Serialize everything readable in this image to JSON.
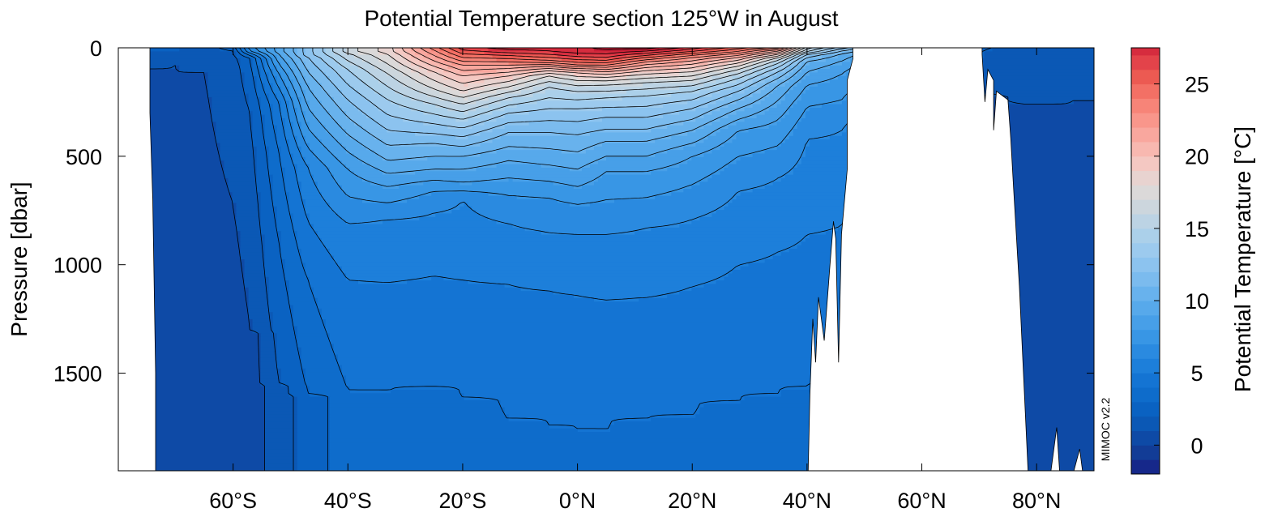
{
  "chart_data": {
    "type": "heatmap",
    "title": "Potential Temperature section 125°W in August",
    "xlabel": "",
    "ylabel": "Pressure [dbar]",
    "colorbar_label": "Potential Temperature [°C]",
    "watermark": "MIMOC v2.2",
    "x_range": [
      -80,
      90
    ],
    "y_range": [
      0,
      1950
    ],
    "y_reversed": true,
    "x_ticks": [
      {
        "value": -60,
        "label": "60°S"
      },
      {
        "value": -40,
        "label": "40°S"
      },
      {
        "value": -20,
        "label": "20°S"
      },
      {
        "value": 0,
        "label": "0°N"
      },
      {
        "value": 20,
        "label": "20°N"
      },
      {
        "value": 40,
        "label": "40°N"
      },
      {
        "value": 60,
        "label": "60°N"
      },
      {
        "value": 80,
        "label": "80°N"
      }
    ],
    "y_ticks": [
      {
        "value": 0,
        "label": "0"
      },
      {
        "value": 500,
        "label": "500"
      },
      {
        "value": 1000,
        "label": "1000"
      },
      {
        "value": 1500,
        "label": "1500"
      }
    ],
    "colorbar_range": [
      -2,
      27.5
    ],
    "colorbar_ticks": [
      {
        "value": 0,
        "label": "0"
      },
      {
        "value": 5,
        "label": "5"
      },
      {
        "value": 10,
        "label": "10"
      },
      {
        "value": 15,
        "label": "15"
      },
      {
        "value": 20,
        "label": "20"
      },
      {
        "value": 25,
        "label": "25"
      }
    ],
    "levels": [
      -2,
      -1,
      0,
      1,
      2,
      3,
      4,
      5,
      6,
      7,
      8,
      9,
      10,
      11,
      12,
      13,
      14,
      15,
      16,
      17,
      18,
      19,
      20,
      21,
      22,
      23,
      24,
      25,
      26,
      27
    ],
    "colors": [
      "#16288a",
      "#123c96",
      "#0e4aa6",
      "#0b58b5",
      "#0a62c2",
      "#0e6ccb",
      "#1474d3",
      "#1d7fda",
      "#2a8ae0",
      "#3896e5",
      "#479fe8",
      "#57a9eb",
      "#68b2ed",
      "#7bbbee",
      "#8cc3ef",
      "#9ccaee",
      "#abd0ea",
      "#bcd3e4",
      "#ccd6dd",
      "#dbd9d9",
      "#e8d3d0",
      "#f4c8c2",
      "#f8b8b0",
      "#f9a79e",
      "#f9968b",
      "#f78478",
      "#f37065",
      "#ec5a52",
      "#e3434a",
      "#d62c3e",
      "#c81d36"
    ],
    "sections": [
      {
        "x": -73.5,
        "isotherms": [
          [
            0.5,
            12
          ],
          [
            0,
            95
          ],
          [
            -0.5,
            1260
          ],
          [
            -1,
            1950
          ]
        ]
      },
      {
        "x": -70,
        "isotherms": [
          [
            0.5,
            5
          ],
          [
            0,
            75
          ],
          [
            -0.5,
            1180
          ],
          [
            -1,
            1950
          ]
        ]
      },
      {
        "x": -65,
        "isotherms": [
          [
            0,
            110
          ],
          [
            -0.5,
            1150
          ],
          [
            -1,
            1950
          ]
        ]
      },
      {
        "x": -60,
        "isotherms": [
          [
            1,
            8
          ],
          [
            0.5,
            90
          ],
          [
            -0.5,
            1350
          ]
        ]
      },
      {
        "x": -57,
        "isotherms": [
          [
            5,
            15
          ],
          [
            2,
            45
          ],
          [
            1.5,
            160
          ],
          [
            1,
            300
          ],
          [
            0.5,
            700
          ],
          [
            0,
            1300
          ]
        ]
      },
      {
        "x": -52,
        "isotherms": [
          [
            8,
            30
          ],
          [
            6,
            120
          ],
          [
            4,
            250
          ],
          [
            3,
            480
          ],
          [
            2,
            900
          ],
          [
            1,
            1550
          ]
        ]
      },
      {
        "x": -47,
        "isotherms": [
          [
            11,
            40
          ],
          [
            9,
            180
          ],
          [
            7,
            370
          ],
          [
            5,
            550
          ],
          [
            4,
            800
          ],
          [
            3,
            1070
          ],
          [
            2,
            1600
          ]
        ]
      },
      {
        "x": -40,
        "isotherms": [
          [
            15,
            20
          ],
          [
            13,
            100
          ],
          [
            11,
            240
          ],
          [
            9,
            400
          ],
          [
            7,
            560
          ],
          [
            5,
            810
          ],
          [
            4,
            1070
          ],
          [
            3,
            1580
          ]
        ]
      },
      {
        "x": -33,
        "isotherms": [
          [
            17,
            30
          ],
          [
            15,
            120
          ],
          [
            13,
            240
          ],
          [
            11,
            380
          ],
          [
            9,
            520
          ],
          [
            7,
            640
          ],
          [
            5,
            790
          ],
          [
            4,
            1080
          ],
          [
            3,
            1590
          ]
        ]
      },
      {
        "x": -25,
        "isotherms": [
          [
            22,
            10
          ],
          [
            20,
            60
          ],
          [
            18,
            110
          ],
          [
            16,
            190
          ],
          [
            14,
            260
          ],
          [
            12,
            350
          ],
          [
            10,
            440
          ],
          [
            8,
            560
          ],
          [
            6,
            660
          ],
          [
            5,
            760
          ],
          [
            4,
            1050
          ],
          [
            3,
            1570
          ]
        ]
      },
      {
        "x": -20,
        "isotherms": [
          [
            25,
            10
          ],
          [
            23,
            45
          ],
          [
            21,
            80
          ],
          [
            19,
            130
          ],
          [
            17,
            200
          ],
          [
            15,
            260
          ],
          [
            13,
            330
          ],
          [
            11,
            410
          ],
          [
            9,
            500
          ],
          [
            7,
            620
          ],
          [
            5,
            700
          ],
          [
            4,
            1070
          ],
          [
            3,
            1620
          ]
        ]
      },
      {
        "x": -12,
        "isotherms": [
          [
            26,
            10
          ],
          [
            24,
            35
          ],
          [
            22,
            65
          ],
          [
            20,
            95
          ],
          [
            18,
            130
          ],
          [
            16,
            180
          ],
          [
            14,
            230
          ],
          [
            12,
            300
          ],
          [
            10,
            390
          ],
          [
            8,
            520
          ],
          [
            6,
            680
          ],
          [
            5,
            810
          ],
          [
            4,
            1090
          ],
          [
            3,
            1720
          ]
        ]
      },
      {
        "x": -5,
        "isotherms": [
          [
            26,
            15
          ],
          [
            24,
            45
          ],
          [
            22,
            70
          ],
          [
            20,
            85
          ],
          [
            18,
            105
          ],
          [
            16,
            130
          ],
          [
            14,
            180
          ],
          [
            12,
            280
          ],
          [
            10,
            390
          ],
          [
            8,
            540
          ],
          [
            6,
            690
          ],
          [
            5,
            850
          ],
          [
            4,
            1120
          ],
          [
            3,
            1740
          ]
        ]
      },
      {
        "x": 0,
        "isotherms": [
          [
            26,
            25
          ],
          [
            24,
            55
          ],
          [
            22,
            80
          ],
          [
            20,
            95
          ],
          [
            18,
            115
          ],
          [
            16,
            150
          ],
          [
            14,
            200
          ],
          [
            12,
            280
          ],
          [
            10,
            400
          ],
          [
            8,
            560
          ],
          [
            6,
            720
          ],
          [
            5,
            860
          ],
          [
            4,
            1140
          ],
          [
            3,
            1760
          ]
        ]
      },
      {
        "x": 5,
        "isotherms": [
          [
            27,
            10
          ],
          [
            25,
            45
          ],
          [
            23,
            70
          ],
          [
            21,
            90
          ],
          [
            19,
            110
          ],
          [
            17,
            135
          ],
          [
            15,
            170
          ],
          [
            13,
            230
          ],
          [
            11,
            320
          ],
          [
            9,
            430
          ],
          [
            7,
            570
          ],
          [
            6,
            700
          ],
          [
            5,
            860
          ],
          [
            4,
            1160
          ],
          [
            3,
            1770
          ]
        ]
      },
      {
        "x": 12,
        "isotherms": [
          [
            27,
            5
          ],
          [
            25,
            25
          ],
          [
            23,
            45
          ],
          [
            21,
            65
          ],
          [
            19,
            90
          ],
          [
            17,
            120
          ],
          [
            15,
            160
          ],
          [
            13,
            220
          ],
          [
            11,
            320
          ],
          [
            9,
            430
          ],
          [
            7,
            570
          ],
          [
            6,
            690
          ],
          [
            5,
            830
          ],
          [
            4,
            1150
          ],
          [
            3,
            1720
          ]
        ]
      },
      {
        "x": 20,
        "isotherms": [
          [
            25,
            8
          ],
          [
            23,
            25
          ],
          [
            21,
            45
          ],
          [
            19,
            75
          ],
          [
            17,
            110
          ],
          [
            15,
            150
          ],
          [
            13,
            200
          ],
          [
            11,
            280
          ],
          [
            9,
            380
          ],
          [
            7,
            500
          ],
          [
            6,
            630
          ],
          [
            5,
            790
          ],
          [
            4,
            1100
          ],
          [
            3,
            1700
          ]
        ]
      },
      {
        "x": 28,
        "isotherms": [
          [
            23,
            8
          ],
          [
            21,
            25
          ],
          [
            19,
            45
          ],
          [
            17,
            70
          ],
          [
            15,
            100
          ],
          [
            13,
            140
          ],
          [
            11,
            200
          ],
          [
            9,
            280
          ],
          [
            7,
            380
          ],
          [
            6,
            500
          ],
          [
            5,
            660
          ],
          [
            4,
            1000
          ],
          [
            3,
            1640
          ]
        ]
      },
      {
        "x": 35,
        "isotherms": [
          [
            21,
            5
          ],
          [
            19,
            15
          ],
          [
            17,
            30
          ],
          [
            15,
            45
          ],
          [
            13,
            70
          ],
          [
            11,
            110
          ],
          [
            9,
            170
          ],
          [
            8,
            240
          ],
          [
            7,
            330
          ],
          [
            6,
            450
          ],
          [
            5,
            600
          ],
          [
            4,
            940
          ],
          [
            3,
            1600
          ]
        ]
      },
      {
        "x": 40,
        "isotherms": [
          [
            14,
            10
          ],
          [
            11,
            30
          ],
          [
            9,
            60
          ],
          [
            8,
            110
          ],
          [
            7,
            170
          ],
          [
            6,
            270
          ],
          [
            5,
            420
          ],
          [
            4,
            860
          ],
          [
            3,
            1560
          ]
        ]
      },
      {
        "x": 46,
        "isotherms": [
          [
            11,
            5
          ],
          [
            9,
            25
          ],
          [
            8,
            60
          ],
          [
            7,
            120
          ],
          [
            6,
            240
          ],
          [
            5,
            380
          ],
          [
            4,
            820
          ],
          [
            3,
            1550
          ]
        ]
      },
      {
        "x": 72,
        "isotherms": [
          [
            0.5,
            10
          ],
          [
            0,
            220
          ]
        ]
      },
      {
        "x": 78,
        "isotherms": [
          [
            0,
            250
          ],
          [
            -0.5,
            1270
          ]
        ]
      },
      {
        "x": 86,
        "isotherms": [
          [
            0,
            240
          ],
          [
            -0.5,
            1120
          ]
        ]
      },
      {
        "x": 90,
        "isotherms": [
          [
            0,
            240
          ],
          [
            -0.5,
            1000
          ]
        ]
      }
    ],
    "ocean_regions": [
      [
        [
          -73.5,
          0
        ],
        [
          48,
          0
        ],
        [
          48,
          50
        ],
        [
          47,
          150
        ],
        [
          47,
          560
        ],
        [
          46,
          860
        ],
        [
          45.5,
          1450
        ],
        [
          45,
          880
        ],
        [
          44.6,
          800
        ],
        [
          44,
          1000
        ],
        [
          43,
          1350
        ],
        [
          42.5,
          1250
        ],
        [
          42,
          1150
        ],
        [
          41.5,
          1450
        ],
        [
          41,
          1250
        ],
        [
          40.5,
          1600
        ],
        [
          40.2,
          1950
        ],
        [
          -73.5,
          1950
        ],
        [
          -73.5,
          1500
        ],
        [
          -74,
          700
        ],
        [
          -74.5,
          300
        ],
        [
          -74.5,
          0
        ]
      ],
      [
        [
          70.5,
          0
        ],
        [
          90,
          0
        ],
        [
          90,
          1950
        ],
        [
          88,
          1950
        ],
        [
          87.5,
          1850
        ],
        [
          86.5,
          1950
        ],
        [
          84,
          1950
        ],
        [
          83.5,
          1750
        ],
        [
          82.5,
          1950
        ],
        [
          78.5,
          1950
        ],
        [
          77,
          1100
        ],
        [
          76,
          650
        ],
        [
          75.5,
          420
        ],
        [
          75,
          240
        ],
        [
          73,
          200
        ],
        [
          72.5,
          380
        ],
        [
          72.5,
          150
        ],
        [
          71.5,
          100
        ],
        [
          71,
          250
        ],
        [
          70.5,
          30
        ]
      ]
    ],
    "land_cutouts": [
      [
        [
          -74.5,
          0
        ],
        [
          -73.5,
          0
        ],
        [
          -73.5,
          1950
        ],
        [
          -74.5,
          1950
        ]
      ]
    ]
  }
}
